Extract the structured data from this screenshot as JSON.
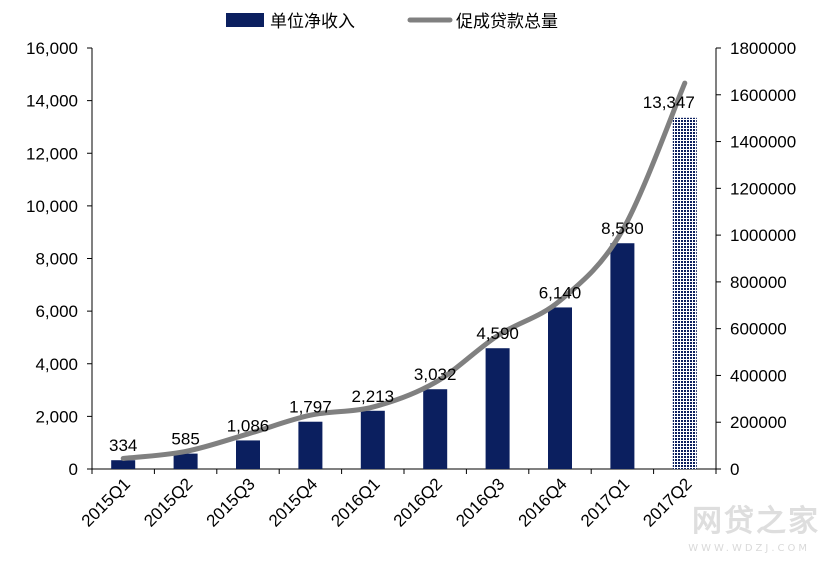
{
  "chart_data": {
    "type": "bar+line",
    "categories": [
      "2015Q1",
      "2015Q2",
      "2015Q3",
      "2015Q4",
      "2016Q1",
      "2016Q2",
      "2016Q3",
      "2016Q4",
      "2017Q1",
      "2017Q2"
    ],
    "series": [
      {
        "name": "单位净收入",
        "type": "bar",
        "axis": "left",
        "values": [
          334,
          585,
          1086,
          1797,
          2213,
          3032,
          4590,
          6140,
          8580,
          13347
        ],
        "labels": [
          "334",
          "585",
          "1,086",
          "1,797",
          "2,213",
          "3,032",
          "4,590",
          "6,140",
          "8,580",
          "13,347"
        ],
        "color": "#0b1f5f",
        "highlight_color": "#e00000"
      },
      {
        "name": "促成贷款总量",
        "type": "line",
        "axis": "right",
        "values": [
          45000,
          75000,
          150000,
          230000,
          265000,
          370000,
          570000,
          720000,
          1020000,
          1650000
        ],
        "color": "#808080"
      }
    ],
    "left_axis": {
      "ylim": [
        0,
        16000
      ],
      "ticks": [
        "0",
        "2,000",
        "4,000",
        "6,000",
        "8,000",
        "10,000",
        "12,000",
        "14,000",
        "16,000"
      ]
    },
    "right_axis": {
      "ylim": [
        0,
        1800000
      ],
      "ticks": [
        "0",
        "200000",
        "400000",
        "600000",
        "800000",
        "1000000",
        "1200000",
        "1400000",
        "1600000",
        "1800000"
      ]
    },
    "legend": "top-center",
    "grid": false
  },
  "watermark": {
    "text": "网贷之家",
    "sub": "WWW.WDZJ.COM"
  }
}
